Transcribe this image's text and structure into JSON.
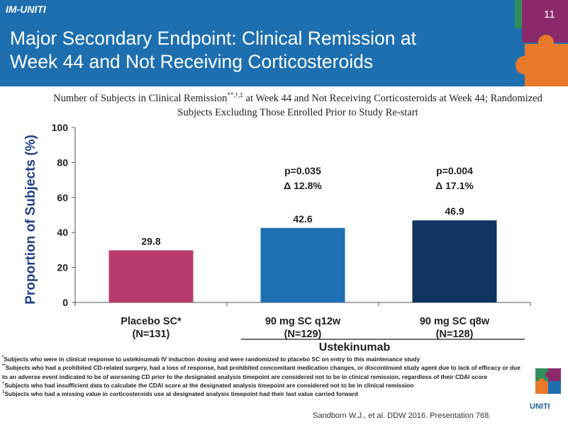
{
  "header": {
    "tag": "IM-UNITI",
    "title_line1": "Major Secondary Endpoint: Clinical Remission at",
    "title_line2": "Week 44 and Not Receiving Corticosteroids",
    "slide_number": "11"
  },
  "subtitle": {
    "part1": "Number of Subjects in Clinical Remission",
    "marks": "**,†,‡",
    "part2": " at Week 44 and Not Receiving Corticosteroids at Week 44; Randomized Subjects Excluding Those Enrolled Prior to Study Re-start"
  },
  "chart_data": {
    "type": "bar",
    "title": "Number of Subjects in Clinical Remission**,†,‡ at Week 44 and Not Receiving Corticosteroids at Week 44; Randomized Subjects Excluding Those Enrolled Prior to Study Re-start",
    "ylabel": "Proportion of Subjects (%)",
    "ylim": [
      0,
      100
    ],
    "yticks": [
      "0",
      "20",
      "40",
      "60",
      "80",
      "100"
    ],
    "categories": [
      {
        "line1": "Placebo SC*",
        "line2": "(N=131)"
      },
      {
        "line1": "90 mg SC q12w",
        "line2": "(N=129)"
      },
      {
        "line1": "90 mg SC q8w",
        "line2": "(N=128)"
      }
    ],
    "values": [
      29.8,
      42.6,
      46.9
    ],
    "value_labels": [
      "29.8",
      "42.6",
      "46.9"
    ],
    "bar_colors": [
      "#b83a6c",
      "#1f6fb4",
      "#0f3560"
    ],
    "annotations": [
      null,
      {
        "p": "p=0.035",
        "delta": "Δ 12.8%"
      },
      {
        "p": "p=0.004",
        "delta": "Δ 17.1%"
      }
    ],
    "group_label": "Ustekinumab",
    "grid": false
  },
  "footnotes": [
    {
      "mark": "*",
      "text": "Subjects who were in clinical response to ustekinumab IV induction dosing and were randomized to placebo SC on entry to this maintenance study"
    },
    {
      "mark": "**",
      "text": "Subjects who had a prohibited CD-related surgery, had a loss of response, had prohibited concomitant medication changes, or discontinued study agent due to lack of efficacy or due to an adverse event indicated to be of worsening CD prior to the designated analysis timepoint are considered not to be in clinical remission, regardless of their CDAI score"
    },
    {
      "mark": "†",
      "text": "Subjects who had insufficient data to calculate the CDAI score at the designated analysis timepoint are considered not to be in clinical remission"
    },
    {
      "mark": "‡",
      "text": "Subjects who had a missing value in corticosteroids use at designated analysis timepoint had their last value carried forward"
    }
  ],
  "citation": "Sandborn W.J., et al. DDW 2016. Presentation 768.",
  "logo": {
    "text": "UNITI",
    "icon": "puzzle-logo-icon"
  },
  "colors": {
    "header_blue": "#1d6fb0",
    "puzzle_purple": "#8b2a6a",
    "puzzle_orange": "#e8792a",
    "puzzle_green": "#2f8f5b",
    "axis_label": "#1f3f86"
  }
}
